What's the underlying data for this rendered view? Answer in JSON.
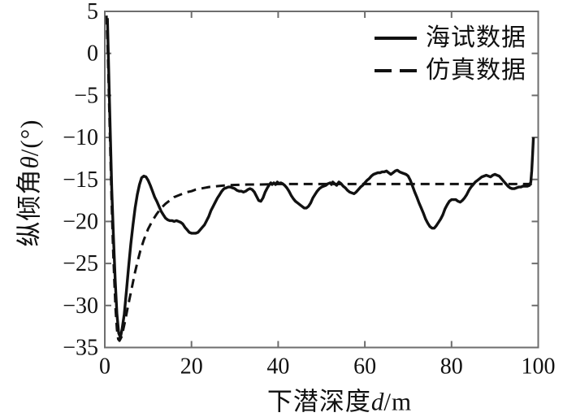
{
  "chart_data": {
    "type": "line",
    "title": "",
    "xlabel_parts": {
      "prefix": "下潜深度",
      "symbol": "d",
      "suffix": "/m"
    },
    "ylabel_parts": {
      "prefix": "纵倾角",
      "symbol": "θ",
      "suffix": "/(°)"
    },
    "xlim": [
      0,
      100
    ],
    "ylim": [
      -35,
      5
    ],
    "xticks": [
      0,
      20,
      40,
      60,
      80,
      100
    ],
    "yticks": [
      5,
      0,
      -5,
      -10,
      -15,
      -20,
      -25,
      -30,
      -35
    ],
    "grid": false,
    "legend_position": "top-right-inside",
    "frame_color": "#6e6e6e",
    "line_color": "#111111",
    "text_color": "#111111",
    "series": [
      {
        "name": "海试数据",
        "style": "solid",
        "points": [
          [
            0.6,
            4.2
          ],
          [
            0.8,
            0
          ],
          [
            1.0,
            -4
          ],
          [
            1.3,
            -10
          ],
          [
            1.6,
            -16
          ],
          [
            2.0,
            -22
          ],
          [
            2.4,
            -27
          ],
          [
            2.8,
            -31
          ],
          [
            3.2,
            -33.3
          ],
          [
            3.6,
            -33.8
          ],
          [
            4.0,
            -32.8
          ],
          [
            4.5,
            -31
          ],
          [
            5,
            -28.2
          ],
          [
            5.5,
            -25.4
          ],
          [
            6,
            -22.7
          ],
          [
            6.5,
            -20.4
          ],
          [
            7,
            -18.4
          ],
          [
            7.5,
            -16.8
          ],
          [
            8,
            -15.6
          ],
          [
            8.5,
            -14.8
          ],
          [
            9,
            -14.6
          ],
          [
            9.5,
            -14.7
          ],
          [
            10,
            -15.1
          ],
          [
            10.5,
            -15.7
          ],
          [
            11,
            -16.4
          ],
          [
            11.5,
            -17.1
          ],
          [
            12,
            -17.6
          ],
          [
            12.5,
            -18.2
          ],
          [
            13,
            -18.8
          ],
          [
            13.5,
            -19.2
          ],
          [
            14,
            -19.6
          ],
          [
            14.5,
            -19.8
          ],
          [
            15,
            -19.9
          ],
          [
            15.5,
            -19.9
          ],
          [
            16,
            -20.0
          ],
          [
            16.5,
            -19.9
          ],
          [
            17,
            -20.0
          ],
          [
            17.5,
            -20.1
          ],
          [
            18,
            -20.3
          ],
          [
            18.5,
            -20.7
          ],
          [
            19,
            -21.0
          ],
          [
            19.5,
            -21.3
          ],
          [
            20,
            -21.4
          ],
          [
            20.5,
            -21.4
          ],
          [
            21,
            -21.4
          ],
          [
            21.5,
            -21.3
          ],
          [
            22,
            -21.0
          ],
          [
            22.5,
            -20.7
          ],
          [
            23,
            -20.4
          ],
          [
            23.5,
            -19.9
          ],
          [
            24,
            -19.4
          ],
          [
            24.5,
            -18.7
          ],
          [
            25,
            -18.2
          ],
          [
            25.5,
            -17.7
          ],
          [
            26,
            -17.2
          ],
          [
            26.5,
            -16.8
          ],
          [
            27,
            -16.4
          ],
          [
            27.5,
            -16.1
          ],
          [
            28,
            -16.0
          ],
          [
            28.5,
            -15.9
          ],
          [
            29,
            -15.9
          ],
          [
            29.5,
            -16.0
          ],
          [
            30,
            -16.1
          ],
          [
            30.5,
            -16.3
          ],
          [
            31,
            -16.4
          ],
          [
            31.5,
            -16.4
          ],
          [
            32,
            -16.5
          ],
          [
            32.5,
            -16.4
          ],
          [
            33,
            -16.2
          ],
          [
            33.5,
            -16.1
          ],
          [
            34,
            -16.2
          ],
          [
            34.5,
            -16.5
          ],
          [
            35,
            -17.0
          ],
          [
            35.5,
            -17.5
          ],
          [
            36,
            -17.6
          ],
          [
            36.5,
            -17.2
          ],
          [
            37,
            -16.5
          ],
          [
            37.5,
            -16.0
          ],
          [
            38,
            -15.6
          ],
          [
            38.3,
            -15.4
          ],
          [
            38.6,
            -15.6
          ],
          [
            39,
            -15.4
          ],
          [
            39.4,
            -15.6
          ],
          [
            39.8,
            -15.3
          ],
          [
            40.2,
            -15.5
          ],
          [
            40.6,
            -15.4
          ],
          [
            41,
            -15.5
          ],
          [
            41.5,
            -15.7
          ],
          [
            42,
            -16.0
          ],
          [
            42.5,
            -16.4
          ],
          [
            43,
            -16.9
          ],
          [
            43.5,
            -17.3
          ],
          [
            44,
            -17.6
          ],
          [
            44.5,
            -17.8
          ],
          [
            45,
            -18.0
          ],
          [
            45.5,
            -18.2
          ],
          [
            46,
            -18.4
          ],
          [
            46.5,
            -18.4
          ],
          [
            47,
            -18.2
          ],
          [
            47.5,
            -17.8
          ],
          [
            48,
            -17.2
          ],
          [
            48.5,
            -16.8
          ],
          [
            49,
            -16.4
          ],
          [
            49.5,
            -16.1
          ],
          [
            50,
            -15.9
          ],
          [
            50.5,
            -15.8
          ],
          [
            51,
            -15.7
          ],
          [
            51.5,
            -15.5
          ],
          [
            52,
            -15.4
          ],
          [
            52.3,
            -15.6
          ],
          [
            52.6,
            -15.3
          ],
          [
            53,
            -15.5
          ],
          [
            53.5,
            -15.7
          ],
          [
            54,
            -15.3
          ],
          [
            54.5,
            -15.5
          ],
          [
            55,
            -15.8
          ],
          [
            55.5,
            -16.0
          ],
          [
            56,
            -16.3
          ],
          [
            56.5,
            -16.5
          ],
          [
            57,
            -16.6
          ],
          [
            57.5,
            -16.7
          ],
          [
            58,
            -16.5
          ],
          [
            58.5,
            -16.2
          ],
          [
            59,
            -15.9
          ],
          [
            59.5,
            -15.7
          ],
          [
            60,
            -15.4
          ],
          [
            60.5,
            -15.1
          ],
          [
            61,
            -14.9
          ],
          [
            61.5,
            -14.6
          ],
          [
            62,
            -14.4
          ],
          [
            62.5,
            -14.3
          ],
          [
            63,
            -14.2
          ],
          [
            63.5,
            -14.2
          ],
          [
            64,
            -14.1
          ],
          [
            64.5,
            -14.1
          ],
          [
            65,
            -14.0
          ],
          [
            65.5,
            -14.2
          ],
          [
            66,
            -14.4
          ],
          [
            66.5,
            -14.2
          ],
          [
            67,
            -14.0
          ],
          [
            67.5,
            -13.9
          ],
          [
            68,
            -14.1
          ],
          [
            68.5,
            -14.2
          ],
          [
            69,
            -14.3
          ],
          [
            69.5,
            -14.4
          ],
          [
            70,
            -14.6
          ],
          [
            70.5,
            -15.1
          ],
          [
            71,
            -15.8
          ],
          [
            71.5,
            -16.5
          ],
          [
            72,
            -17.1
          ],
          [
            72.5,
            -17.8
          ],
          [
            73,
            -18.4
          ],
          [
            73.5,
            -19.0
          ],
          [
            74,
            -19.7
          ],
          [
            74.5,
            -20.2
          ],
          [
            75,
            -20.6
          ],
          [
            75.5,
            -20.8
          ],
          [
            76,
            -20.8
          ],
          [
            76.5,
            -20.5
          ],
          [
            77,
            -20.1
          ],
          [
            77.5,
            -19.7
          ],
          [
            78,
            -19.2
          ],
          [
            78.5,
            -18.5
          ],
          [
            79,
            -18.0
          ],
          [
            79.5,
            -17.6
          ],
          [
            80,
            -17.4
          ],
          [
            80.5,
            -17.4
          ],
          [
            81,
            -17.4
          ],
          [
            81.5,
            -17.6
          ],
          [
            82,
            -17.7
          ],
          [
            82.5,
            -17.5
          ],
          [
            83,
            -17.2
          ],
          [
            83.5,
            -16.8
          ],
          [
            84,
            -16.3
          ],
          [
            84.5,
            -15.9
          ],
          [
            85,
            -15.6
          ],
          [
            85.5,
            -15.3
          ],
          [
            86,
            -15.1
          ],
          [
            86.5,
            -14.9
          ],
          [
            87,
            -14.7
          ],
          [
            87.5,
            -14.6
          ],
          [
            88,
            -14.5
          ],
          [
            88.5,
            -14.6
          ],
          [
            89,
            -14.7
          ],
          [
            89.5,
            -14.5
          ],
          [
            90,
            -14.4
          ],
          [
            90.5,
            -14.5
          ],
          [
            91,
            -14.6
          ],
          [
            91.5,
            -14.9
          ],
          [
            92,
            -15.2
          ],
          [
            92.5,
            -15.5
          ],
          [
            93,
            -15.8
          ],
          [
            93.5,
            -16.0
          ],
          [
            94,
            -16.1
          ],
          [
            94.5,
            -16.1
          ],
          [
            95,
            -16.0
          ],
          [
            95.5,
            -15.9
          ],
          [
            96,
            -15.9
          ],
          [
            96.5,
            -15.8
          ],
          [
            97,
            -15.8
          ],
          [
            97.5,
            -15.8
          ],
          [
            98,
            -15.7
          ],
          [
            98.3,
            -15.3
          ],
          [
            98.5,
            -14.0
          ],
          [
            98.7,
            -12.0
          ],
          [
            98.9,
            -10.0
          ]
        ]
      },
      {
        "name": "仿真数据",
        "style": "dashed",
        "points": [
          [
            0.4,
            4.5
          ],
          [
            0.7,
            0
          ],
          [
            1.0,
            -6
          ],
          [
            1.3,
            -12
          ],
          [
            1.6,
            -18
          ],
          [
            1.9,
            -23
          ],
          [
            2.2,
            -27
          ],
          [
            2.5,
            -30.5
          ],
          [
            2.8,
            -32.8
          ],
          [
            3.1,
            -34.0
          ],
          [
            3.4,
            -34.2
          ],
          [
            3.8,
            -33.8
          ],
          [
            4.2,
            -33.0
          ],
          [
            4.7,
            -31.8
          ],
          [
            5.2,
            -30.5
          ],
          [
            5.8,
            -29.0
          ],
          [
            6.4,
            -27.5
          ],
          [
            7,
            -26.0
          ],
          [
            7.6,
            -24.7
          ],
          [
            8.2,
            -23.5
          ],
          [
            9,
            -22.2
          ],
          [
            10,
            -20.9
          ],
          [
            11,
            -19.9
          ],
          [
            12,
            -19.1
          ],
          [
            13,
            -18.4
          ],
          [
            14,
            -17.9
          ],
          [
            15,
            -17.5
          ],
          [
            16,
            -17.1
          ],
          [
            17,
            -16.9
          ],
          [
            18,
            -16.7
          ],
          [
            19,
            -16.5
          ],
          [
            20,
            -16.4
          ],
          [
            21,
            -16.2
          ],
          [
            22,
            -16.1
          ],
          [
            24,
            -15.9
          ],
          [
            26,
            -15.8
          ],
          [
            28,
            -15.7
          ],
          [
            30,
            -15.65
          ],
          [
            33,
            -15.6
          ],
          [
            36,
            -15.6
          ],
          [
            40,
            -15.55
          ],
          [
            50,
            -15.55
          ],
          [
            60,
            -15.55
          ],
          [
            70,
            -15.55
          ],
          [
            80,
            -15.55
          ],
          [
            90,
            -15.55
          ],
          [
            99.5,
            -15.55
          ]
        ]
      }
    ]
  }
}
